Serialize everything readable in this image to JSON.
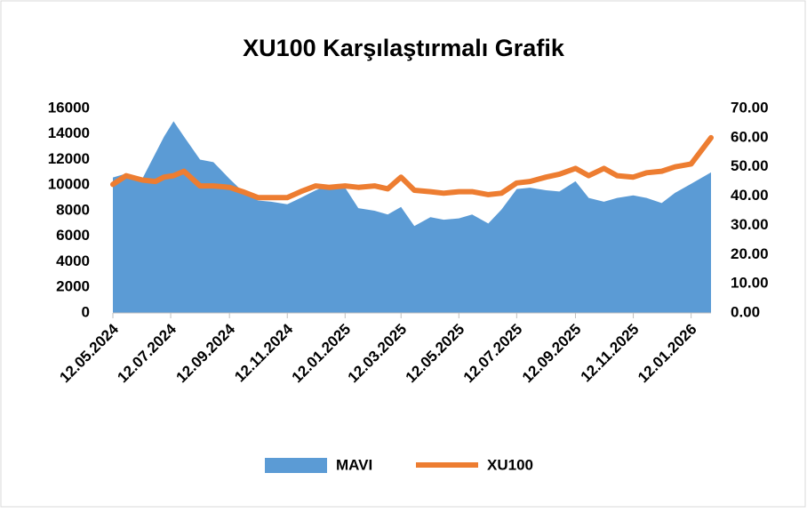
{
  "chart_data": {
    "type": "area-line",
    "title": "XU100 Karşılaştırmalı  Grafik",
    "x": [
      "12.05.2024",
      "26.05.2024",
      "12.06.2024",
      "26.06.2024",
      "05.07.2024",
      "15.07.2024",
      "26.07.2024",
      "12.08.2024",
      "26.08.2024",
      "12.09.2024",
      "26.09.2024",
      "12.10.2024",
      "26.10.2024",
      "12.11.2024",
      "26.11.2024",
      "12.12.2024",
      "26.12.2024",
      "12.01.2025",
      "26.01.2025",
      "12.02.2025",
      "26.02.2025",
      "12.03.2025",
      "26.03.2025",
      "12.04.2025",
      "26.04.2025",
      "12.05.2025",
      "26.05.2025",
      "12.06.2025",
      "26.06.2025",
      "12.07.2025",
      "26.07.2025",
      "12.08.2025",
      "26.08.2025",
      "12.09.2025",
      "26.09.2025",
      "12.10.2025",
      "26.10.2025",
      "12.11.2025",
      "26.11.2025",
      "12.12.2025",
      "26.12.2025",
      "12.01.2026",
      "02.02.2026"
    ],
    "series": [
      {
        "name": "MAVI",
        "type": "area",
        "color": "#5b9bd5",
        "values": [
          10600,
          10900,
          10500,
          12500,
          13800,
          15000,
          13800,
          12000,
          11800,
          10500,
          9500,
          8800,
          8700,
          8500,
          9000,
          9600,
          10000,
          9800,
          8200,
          8000,
          7700,
          8300,
          6800,
          7500,
          7300,
          7400,
          7700,
          7000,
          8100,
          9700,
          9800,
          9600,
          9500,
          10300,
          9000,
          8700,
          9000,
          9200,
          9000,
          8600,
          9400,
          10100,
          11000
        ]
      },
      {
        "name": "XU100",
        "type": "line",
        "axis": "y2",
        "color": "#ed7d31",
        "values": [
          44,
          47,
          45.5,
          45,
          46.5,
          47,
          48.5,
          43.5,
          43.5,
          43,
          41.5,
          39.5,
          39.5,
          39.5,
          41.5,
          43.5,
          43,
          43.5,
          43,
          43.5,
          42.5,
          46.5,
          42,
          41.5,
          41,
          41.5,
          41.5,
          40.5,
          41,
          44.5,
          45,
          46.5,
          47.5,
          49.5,
          47,
          49.5,
          47,
          46.5,
          48,
          48.5,
          50,
          51,
          60
        ]
      }
    ],
    "xlim": [
      "12.05.2024",
      "02.02.2026"
    ],
    "xticks": [
      "12.05.2024",
      "12.07.2024",
      "12.09.2024",
      "12.11.2024",
      "12.01.2025",
      "12.03.2025",
      "12.05.2025",
      "12.07.2025",
      "12.09.2025",
      "12.11.2025",
      "12.01.2026"
    ],
    "ylim": [
      0,
      16000
    ],
    "yticks": [
      0,
      2000,
      4000,
      6000,
      8000,
      10000,
      12000,
      14000,
      16000
    ],
    "y2lim": [
      0,
      70
    ],
    "y2ticks": [
      {
        "value": 0,
        "label": "0.00"
      },
      {
        "value": 10,
        "label": "10.00"
      },
      {
        "value": 20,
        "label": "20.00"
      },
      {
        "value": 30,
        "label": "30.00"
      },
      {
        "value": 40,
        "label": "40.00"
      },
      {
        "value": 50,
        "label": "50.00"
      },
      {
        "value": 60,
        "label": "60.00"
      },
      {
        "value": 70,
        "label": "70.00"
      }
    ],
    "legend": "bottom"
  }
}
